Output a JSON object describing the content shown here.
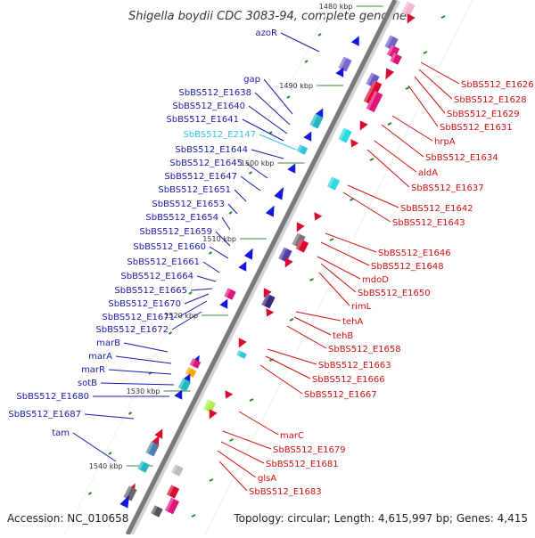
{
  "title": "Shigella boydii CDC 3083-94, complete genome",
  "footer": {
    "accession": "Accession: NC_010658",
    "topology": "Topology: circular; Length: 4,615,997 bp; Genes: 4,415"
  },
  "colors": {
    "backbone": "#7a7a7a",
    "left_label": "#1a1aa8",
    "right_label": "#d01010",
    "highlight_label": "#33c6e0",
    "tick": "#2a8a2a"
  },
  "ticks": [
    {
      "label": "1480 kbp"
    },
    {
      "label": "1490 kbp"
    },
    {
      "label": "1500 kbp"
    },
    {
      "label": "1510 kbp"
    },
    {
      "label": "1520 kbp"
    },
    {
      "label": "1530 kbp"
    },
    {
      "label": "1540 kbp"
    }
  ],
  "left_labels": [
    {
      "text": "azoR"
    },
    {
      "text": "gap"
    },
    {
      "text": "SbBS512_E1638"
    },
    {
      "text": "SbBS512_E1640"
    },
    {
      "text": "SbBS512_E1641"
    },
    {
      "text": "SbBS512_E2147",
      "highlight": true
    },
    {
      "text": "SbBS512_E1644"
    },
    {
      "text": "SbBS512_E1645"
    },
    {
      "text": "SbBS512_E1647"
    },
    {
      "text": "SbBS512_E1651"
    },
    {
      "text": "SbBS512_E1653"
    },
    {
      "text": "SbBS512_E1654"
    },
    {
      "text": "SbBS512_E1659"
    },
    {
      "text": "SbBS512_E1660"
    },
    {
      "text": "SbBS512_E1661"
    },
    {
      "text": "SbBS512_E1664"
    },
    {
      "text": "SbBS512_E1665"
    },
    {
      "text": "SbBS512_E1670"
    },
    {
      "text": "SbBS512_E1671"
    },
    {
      "text": "SbBS512_E1672"
    },
    {
      "text": "marB"
    },
    {
      "text": "marA"
    },
    {
      "text": "marR"
    },
    {
      "text": "sotB"
    },
    {
      "text": "SbBS512_E1680"
    },
    {
      "text": "SbBS512_E1687"
    },
    {
      "text": "tam"
    }
  ],
  "right_labels": [
    {
      "text": "SbBS512_E1626"
    },
    {
      "text": "SbBS512_E1628"
    },
    {
      "text": "SbBS512_E1629"
    },
    {
      "text": "SbBS512_E1631"
    },
    {
      "text": "hrpA"
    },
    {
      "text": "SbBS512_E1634"
    },
    {
      "text": "aldA"
    },
    {
      "text": "SbBS512_E1637"
    },
    {
      "text": "SbBS512_E1642"
    },
    {
      "text": "SbBS512_E1643"
    },
    {
      "text": "SbBS512_E1646"
    },
    {
      "text": "SbBS512_E1648"
    },
    {
      "text": "mdoD"
    },
    {
      "text": "SbBS512_E1650"
    },
    {
      "text": "rimL"
    },
    {
      "text": "tehA"
    },
    {
      "text": "tehB"
    },
    {
      "text": "SbBS512_E1658"
    },
    {
      "text": "SbBS512_E1663"
    },
    {
      "text": "SbBS512_E1666"
    },
    {
      "text": "SbBS512_E1667"
    },
    {
      "text": "marC"
    },
    {
      "text": "SbBS512_E1679"
    },
    {
      "text": "SbBS512_E1681"
    },
    {
      "text": "glsA"
    },
    {
      "text": "SbBS512_E1683"
    }
  ]
}
